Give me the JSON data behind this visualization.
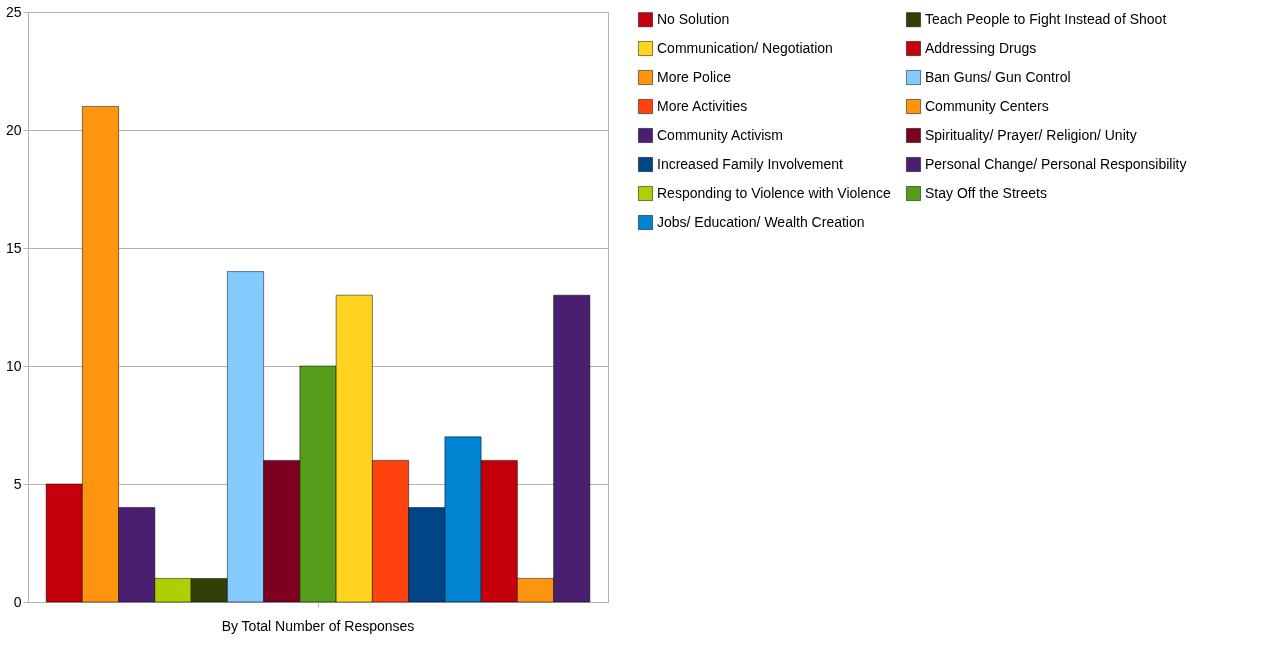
{
  "chart_data": {
    "type": "bar",
    "categories": [
      "By Total Number of Responses"
    ],
    "series": [
      {
        "name": "No Solution",
        "color": "#c5000b",
        "values": [
          5
        ]
      },
      {
        "name": "More Police",
        "color": "#ff950e",
        "values": [
          21
        ]
      },
      {
        "name": "Community Activism",
        "color": "#4b1f6f",
        "values": [
          4
        ]
      },
      {
        "name": "Responding to Violence with Violence",
        "color": "#aecf00",
        "values": [
          1
        ]
      },
      {
        "name": "Teach People to Fight Instead of Shoot",
        "color": "#314004",
        "values": [
          1
        ]
      },
      {
        "name": "Ban Guns/ Gun Control",
        "color": "#83caff",
        "values": [
          14
        ]
      },
      {
        "name": "Spirituality/ Prayer/ Religion/ Unity",
        "color": "#7e0021",
        "values": [
          6
        ]
      },
      {
        "name": "Stay Off the Streets",
        "color": "#579d1c",
        "values": [
          10
        ]
      },
      {
        "name": "Communication/ Negotiation",
        "color": "#ffd320",
        "values": [
          13
        ]
      },
      {
        "name": "More Activities",
        "color": "#ff420e",
        "values": [
          6
        ]
      },
      {
        "name": "Increased Family Involvement",
        "color": "#004586",
        "values": [
          4
        ]
      },
      {
        "name": "Jobs/ Education/ Wealth Creation",
        "color": "#0084d1",
        "values": [
          7
        ]
      },
      {
        "name": "Addressing Drugs",
        "color": "#c5000b",
        "values": [
          6
        ]
      },
      {
        "name": "Community Centers",
        "color": "#ff950e",
        "values": [
          1
        ]
      },
      {
        "name": "Personal Change/ Personal Responsibility",
        "color": "#4b1f6f",
        "values": [
          13
        ]
      }
    ],
    "ylim": [
      0,
      25
    ],
    "yticks": [
      0,
      5,
      10,
      15,
      20,
      25
    ],
    "grid": "y",
    "legend": "right"
  }
}
